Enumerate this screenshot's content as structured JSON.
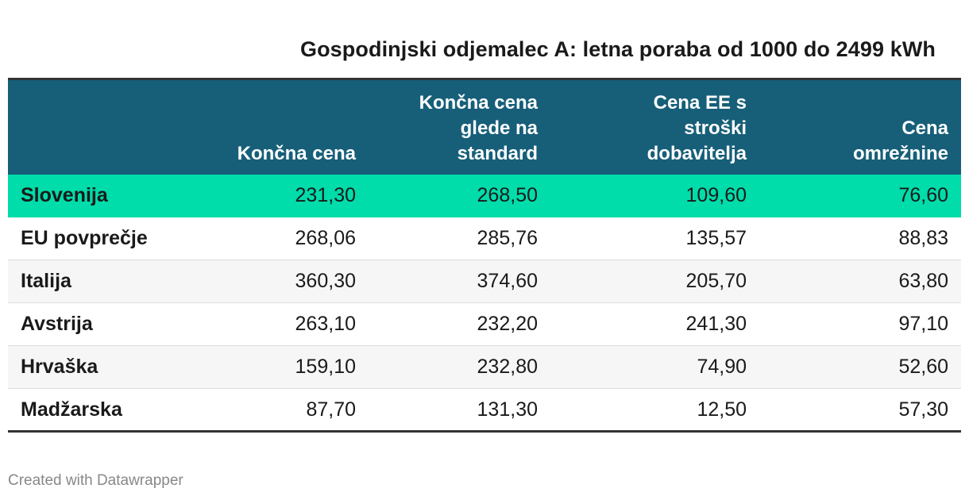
{
  "title": "Gospodinjski odjemalec A: letna poraba od 1000 do 2499 kWh",
  "footer": "Created with Datawrapper",
  "colors": {
    "header_bg": "#175f79",
    "highlight_row": "#00dcaa",
    "alt_row": "#f6f6f6"
  },
  "chart_data": {
    "type": "table",
    "title": "Gospodinjski odjemalec A: letna poraba od 1000 do 2499 kWh",
    "columns": [
      "",
      "Končna cena",
      "Končna cena glede na standard",
      "Cena EE s stroški dobavitelja",
      "Cena omrežnine"
    ],
    "rows": [
      [
        "Slovenija",
        "231,30",
        "268,50",
        "109,60",
        "76,60"
      ],
      [
        "EU povprečje",
        "268,06",
        "285,76",
        "135,57",
        "88,83"
      ],
      [
        "Italija",
        "360,30",
        "374,60",
        "205,70",
        "63,80"
      ],
      [
        "Avstrija",
        "263,10",
        "232,20",
        "241,30",
        "97,10"
      ],
      [
        "Hrvaška",
        "159,10",
        "232,80",
        "74,90",
        "52,60"
      ],
      [
        "Madžarska",
        "87,70",
        "131,30",
        "12,50",
        "57,30"
      ]
    ],
    "highlighted_row": "Slovenija"
  }
}
